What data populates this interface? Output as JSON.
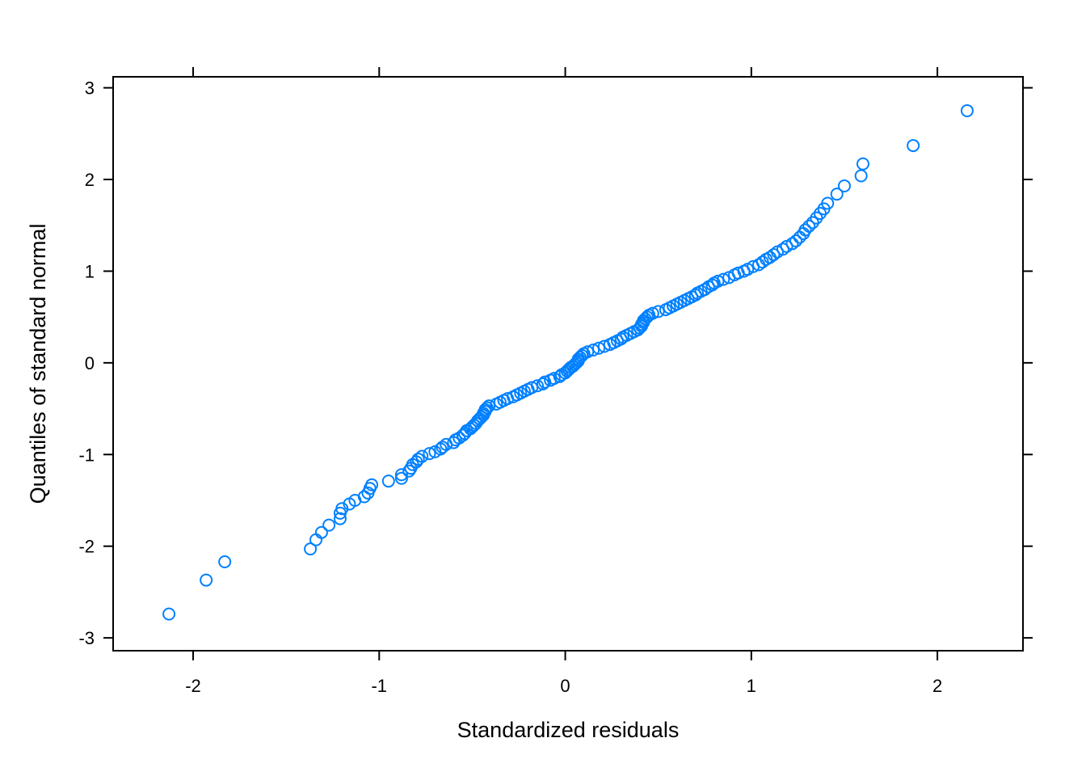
{
  "chart_data": {
    "type": "scatter",
    "xlabel": "Standardized residuals",
    "ylabel": "Quantiles of standard normal",
    "xlim": [
      -2.43,
      2.46
    ],
    "ylim": [
      -3.14,
      3.12
    ],
    "xticks": [
      -2,
      -1,
      0,
      1,
      2
    ],
    "yticks": [
      -3,
      -2,
      -1,
      0,
      1,
      2,
      3
    ],
    "xtick_labels": [
      "-2",
      "-1",
      "0",
      "1",
      "2"
    ],
    "ytick_labels": [
      "-3",
      "-2",
      "-1",
      "0",
      "1",
      "2",
      "3"
    ],
    "grid": false,
    "marker": "open-circle",
    "point_color": "#0080ff",
    "points": [
      [
        -2.13,
        -2.74
      ],
      [
        -1.93,
        -2.37
      ],
      [
        -1.83,
        -2.17
      ],
      [
        -1.37,
        -2.03
      ],
      [
        -1.34,
        -1.93
      ],
      [
        -1.31,
        -1.85
      ],
      [
        -1.27,
        -1.77
      ],
      [
        -1.21,
        -1.7
      ],
      [
        -1.21,
        -1.64
      ],
      [
        -1.2,
        -1.59
      ],
      [
        -1.16,
        -1.54
      ],
      [
        -1.13,
        -1.5
      ],
      [
        -1.08,
        -1.46
      ],
      [
        -1.06,
        -1.42
      ],
      [
        -1.05,
        -1.37
      ],
      [
        -1.04,
        -1.33
      ],
      [
        -0.95,
        -1.29
      ],
      [
        -0.88,
        -1.26
      ],
      [
        -0.88,
        -1.22
      ],
      [
        -0.84,
        -1.18
      ],
      [
        -0.83,
        -1.15
      ],
      [
        -0.82,
        -1.11
      ],
      [
        -0.8,
        -1.08
      ],
      [
        -0.79,
        -1.05
      ],
      [
        -0.77,
        -1.02
      ],
      [
        -0.73,
        -0.99
      ],
      [
        -0.7,
        -0.97
      ],
      [
        -0.67,
        -0.94
      ],
      [
        -0.66,
        -0.92
      ],
      [
        -0.64,
        -0.89
      ],
      [
        -0.6,
        -0.87
      ],
      [
        -0.59,
        -0.84
      ],
      [
        -0.57,
        -0.82
      ],
      [
        -0.55,
        -0.79
      ],
      [
        -0.54,
        -0.77
      ],
      [
        -0.53,
        -0.74
      ],
      [
        -0.51,
        -0.72
      ],
      [
        -0.5,
        -0.7
      ],
      [
        -0.49,
        -0.68
      ],
      [
        -0.48,
        -0.66
      ],
      [
        -0.47,
        -0.63
      ],
      [
        -0.46,
        -0.61
      ],
      [
        -0.45,
        -0.59
      ],
      [
        -0.44,
        -0.57
      ],
      [
        -0.44,
        -0.55
      ],
      [
        -0.43,
        -0.53
      ],
      [
        -0.43,
        -0.51
      ],
      [
        -0.42,
        -0.49
      ],
      [
        -0.41,
        -0.47
      ],
      [
        -0.37,
        -0.45
      ],
      [
        -0.35,
        -0.43
      ],
      [
        -0.33,
        -0.41
      ],
      [
        -0.31,
        -0.39
      ],
      [
        -0.28,
        -0.37
      ],
      [
        -0.26,
        -0.35
      ],
      [
        -0.24,
        -0.33
      ],
      [
        -0.22,
        -0.31
      ],
      [
        -0.2,
        -0.29
      ],
      [
        -0.18,
        -0.27
      ],
      [
        -0.15,
        -0.25
      ],
      [
        -0.12,
        -0.23
      ],
      [
        -0.11,
        -0.21
      ],
      [
        -0.08,
        -0.19
      ],
      [
        -0.06,
        -0.17
      ],
      [
        -0.03,
        -0.15
      ],
      [
        -0.02,
        -0.13
      ],
      [
        0.0,
        -0.11
      ],
      [
        0.01,
        -0.09
      ],
      [
        0.02,
        -0.07
      ],
      [
        0.03,
        -0.05
      ],
      [
        0.04,
        -0.04
      ],
      [
        0.05,
        -0.02
      ],
      [
        0.06,
        0.0
      ],
      [
        0.07,
        0.02
      ],
      [
        0.07,
        0.04
      ],
      [
        0.08,
        0.06
      ],
      [
        0.09,
        0.08
      ],
      [
        0.1,
        0.1
      ],
      [
        0.12,
        0.12
      ],
      [
        0.15,
        0.14
      ],
      [
        0.18,
        0.16
      ],
      [
        0.21,
        0.18
      ],
      [
        0.24,
        0.2
      ],
      [
        0.26,
        0.22
      ],
      [
        0.28,
        0.24
      ],
      [
        0.3,
        0.26
      ],
      [
        0.31,
        0.28
      ],
      [
        0.33,
        0.3
      ],
      [
        0.35,
        0.32
      ],
      [
        0.37,
        0.34
      ],
      [
        0.39,
        0.36
      ],
      [
        0.4,
        0.38
      ],
      [
        0.41,
        0.4
      ],
      [
        0.41,
        0.42
      ],
      [
        0.42,
        0.44
      ],
      [
        0.42,
        0.46
      ],
      [
        0.43,
        0.48
      ],
      [
        0.44,
        0.5
      ],
      [
        0.45,
        0.52
      ],
      [
        0.47,
        0.54
      ],
      [
        0.5,
        0.56
      ],
      [
        0.54,
        0.58
      ],
      [
        0.56,
        0.6
      ],
      [
        0.58,
        0.62
      ],
      [
        0.6,
        0.64
      ],
      [
        0.62,
        0.66
      ],
      [
        0.64,
        0.68
      ],
      [
        0.66,
        0.7
      ],
      [
        0.68,
        0.72
      ],
      [
        0.7,
        0.74
      ],
      [
        0.71,
        0.76
      ],
      [
        0.73,
        0.78
      ],
      [
        0.75,
        0.8
      ],
      [
        0.77,
        0.83
      ],
      [
        0.79,
        0.85
      ],
      [
        0.8,
        0.87
      ],
      [
        0.82,
        0.89
      ],
      [
        0.85,
        0.91
      ],
      [
        0.88,
        0.93
      ],
      [
        0.91,
        0.96
      ],
      [
        0.93,
        0.98
      ],
      [
        0.96,
        1.0
      ],
      [
        0.98,
        1.02
      ],
      [
        1.01,
        1.05
      ],
      [
        1.04,
        1.07
      ],
      [
        1.06,
        1.1
      ],
      [
        1.08,
        1.13
      ],
      [
        1.1,
        1.15
      ],
      [
        1.12,
        1.18
      ],
      [
        1.14,
        1.21
      ],
      [
        1.17,
        1.24
      ],
      [
        1.19,
        1.27
      ],
      [
        1.22,
        1.3
      ],
      [
        1.24,
        1.33
      ],
      [
        1.26,
        1.37
      ],
      [
        1.28,
        1.41
      ],
      [
        1.29,
        1.45
      ],
      [
        1.31,
        1.49
      ],
      [
        1.33,
        1.53
      ],
      [
        1.35,
        1.58
      ],
      [
        1.37,
        1.63
      ],
      [
        1.39,
        1.68
      ],
      [
        1.41,
        1.74
      ],
      [
        1.46,
        1.84
      ],
      [
        1.5,
        1.93
      ],
      [
        1.59,
        2.04
      ],
      [
        1.6,
        2.17
      ],
      [
        1.87,
        2.37
      ],
      [
        2.16,
        2.75
      ]
    ]
  }
}
